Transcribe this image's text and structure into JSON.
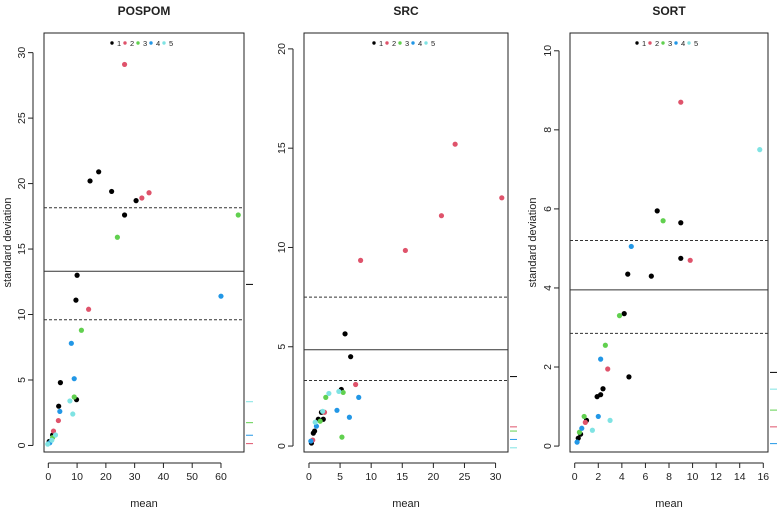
{
  "series_colors": {
    "1": "#000000",
    "2": "#df536b",
    "3": "#61d04f",
    "4": "#2297e6",
    "5": "#7fe3e3"
  },
  "chart_data": [
    {
      "type": "scatter",
      "title": "POSPOM",
      "xlabel": "mean",
      "ylabel": "standard deviation",
      "xlim": [
        -1.5,
        68
      ],
      "ylim": [
        -0.5,
        31.5
      ],
      "xticks": [
        0,
        10,
        20,
        30,
        40,
        50,
        60
      ],
      "yticks": [
        0,
        5,
        10,
        15,
        20,
        25,
        30
      ],
      "legend": {
        "position": "top",
        "labels": [
          "1",
          "2",
          "3",
          "4",
          "5"
        ]
      },
      "hlines": [
        {
          "y": 13.3,
          "style": "solid"
        },
        {
          "y": 18.15,
          "style": "dashed"
        },
        {
          "y": 9.6,
          "style": "dashed"
        }
      ],
      "series": [
        {
          "name": "1",
          "points": [
            [
              14.5,
              20.2
            ],
            [
              17.5,
              20.9
            ],
            [
              22,
              19.4
            ],
            [
              26.5,
              17.6
            ],
            [
              30.5,
              18.7
            ],
            [
              10,
              13.0
            ],
            [
              9.6,
              11.1
            ],
            [
              9.8,
              3.5
            ],
            [
              4.2,
              4.8
            ],
            [
              3.6,
              3.0
            ],
            [
              1.5,
              0.8
            ],
            [
              0.3,
              0.3
            ]
          ]
        },
        {
          "name": "2",
          "points": [
            [
              26.5,
              29.1
            ],
            [
              32.5,
              18.9
            ],
            [
              35,
              19.3
            ],
            [
              14,
              10.4
            ],
            [
              3.5,
              1.9
            ],
            [
              1.8,
              1.1
            ]
          ]
        },
        {
          "name": "3",
          "points": [
            [
              24,
              15.9
            ],
            [
              66,
              17.6
            ],
            [
              11.5,
              8.8
            ],
            [
              9,
              3.7
            ],
            [
              1.5,
              0.6
            ]
          ]
        },
        {
          "name": "4",
          "points": [
            [
              60,
              11.4
            ],
            [
              8,
              7.8
            ],
            [
              9,
              5.1
            ],
            [
              4,
              2.6
            ],
            [
              0.5,
              0.2
            ]
          ]
        },
        {
          "name": "5",
          "points": [
            [
              7.5,
              3.4
            ],
            [
              8.5,
              2.4
            ],
            [
              2.5,
              0.8
            ],
            [
              1.2,
              0.4
            ],
            [
              -0.2,
              0.1
            ]
          ]
        }
      ]
    },
    {
      "type": "scatter",
      "title": "SRC",
      "xlabel": "mean",
      "ylabel": "",
      "xlim": [
        -0.8,
        32
      ],
      "ylim": [
        -0.3,
        20.8
      ],
      "xticks": [
        0,
        5,
        10,
        15,
        20,
        25,
        30
      ],
      "yticks": [
        0,
        5,
        10,
        15,
        20
      ],
      "legend": {
        "position": "top",
        "labels": [
          "1",
          "2",
          "3",
          "4",
          "5"
        ]
      },
      "hlines": [
        {
          "y": 4.85,
          "style": "solid"
        },
        {
          "y": 7.5,
          "style": "dashed"
        },
        {
          "y": 3.3,
          "style": "dashed"
        }
      ],
      "series": [
        {
          "name": "1",
          "points": [
            [
              5.8,
              5.65
            ],
            [
              6.7,
              4.5
            ],
            [
              5.2,
              2.85
            ],
            [
              2,
              1.7
            ],
            [
              2.3,
              1.35
            ],
            [
              1.5,
              1.35
            ],
            [
              0.9,
              0.75
            ],
            [
              0.7,
              0.65
            ],
            [
              0.4,
              0.15
            ]
          ]
        },
        {
          "name": "2",
          "points": [
            [
              23.5,
              15.2
            ],
            [
              31,
              12.5
            ],
            [
              21.3,
              11.6
            ],
            [
              15.5,
              9.85
            ],
            [
              8.3,
              9.35
            ],
            [
              7.5,
              3.1
            ],
            [
              2.5,
              1.7
            ],
            [
              0.6,
              0.3
            ]
          ]
        },
        {
          "name": "3",
          "points": [
            [
              5.5,
              2.7
            ],
            [
              5.3,
              0.45
            ],
            [
              2.7,
              2.45
            ],
            [
              1.8,
              1.25
            ]
          ]
        },
        {
          "name": "4",
          "points": [
            [
              8,
              2.45
            ],
            [
              6.5,
              1.45
            ],
            [
              4.5,
              1.8
            ],
            [
              1.2,
              1.0
            ],
            [
              0.3,
              0.25
            ]
          ]
        },
        {
          "name": "5",
          "points": [
            [
              4.8,
              2.75
            ],
            [
              3.2,
              2.65
            ],
            [
              2.2,
              1.75
            ],
            [
              1.0,
              1.2
            ]
          ]
        }
      ]
    },
    {
      "type": "scatter",
      "title": "SORT",
      "xlabel": "mean",
      "ylabel": "standard deviation",
      "xlim": [
        -0.4,
        16.4
      ],
      "ylim": [
        -0.15,
        10.45
      ],
      "xticks": [
        0,
        2,
        4,
        6,
        8,
        10,
        12,
        14,
        16
      ],
      "yticks": [
        0,
        2,
        4,
        6,
        8,
        10
      ],
      "legend": {
        "position": "top",
        "labels": [
          "1",
          "2",
          "3",
          "4",
          "5"
        ]
      },
      "hlines": [
        {
          "y": 3.95,
          "style": "solid"
        },
        {
          "y": 5.2,
          "style": "dashed"
        },
        {
          "y": 2.85,
          "style": "dashed"
        }
      ],
      "series": [
        {
          "name": "1",
          "points": [
            [
              7,
              5.95
            ],
            [
              9,
              5.65
            ],
            [
              4.5,
              4.35
            ],
            [
              6.5,
              4.3
            ],
            [
              9,
              4.75
            ],
            [
              4.2,
              3.35
            ],
            [
              4.6,
              1.75
            ],
            [
              2.4,
              1.45
            ],
            [
              2.2,
              1.3
            ],
            [
              1.9,
              1.25
            ],
            [
              1,
              0.65
            ],
            [
              0.5,
              0.3
            ],
            [
              0.3,
              0.2
            ]
          ]
        },
        {
          "name": "2",
          "points": [
            [
              9,
              8.7
            ],
            [
              9.8,
              4.7
            ],
            [
              2.8,
              1.95
            ],
            [
              0.9,
              0.6
            ]
          ]
        },
        {
          "name": "3",
          "points": [
            [
              7.5,
              5.7
            ],
            [
              3.8,
              3.3
            ],
            [
              2.6,
              2.55
            ],
            [
              0.8,
              0.75
            ],
            [
              0.4,
              0.35
            ]
          ]
        },
        {
          "name": "4",
          "points": [
            [
              4.8,
              5.05
            ],
            [
              2.2,
              2.2
            ],
            [
              2,
              0.75
            ],
            [
              0.6,
              0.45
            ],
            [
              0.2,
              0.1
            ]
          ]
        },
        {
          "name": "5",
          "points": [
            [
              15.7,
              7.5
            ],
            [
              3,
              0.65
            ],
            [
              1.5,
              0.4
            ]
          ]
        }
      ]
    }
  ]
}
